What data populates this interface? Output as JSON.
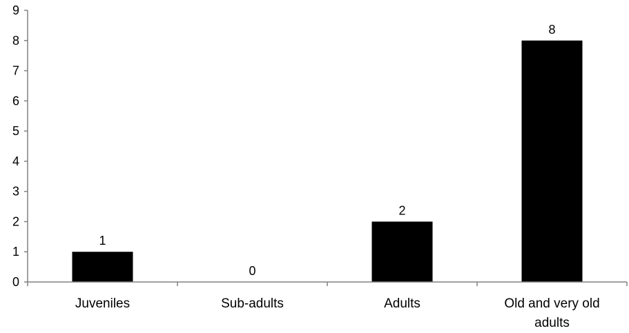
{
  "chart_data": {
    "type": "bar",
    "title": "",
    "xlabel": "",
    "ylabel": "",
    "categories": [
      [
        "Juveniles"
      ],
      [
        "Sub-adults"
      ],
      [
        "Adults"
      ],
      [
        "Old and very old",
        "adults"
      ]
    ],
    "values": [
      1,
      0,
      2,
      8
    ],
    "data_labels": [
      "1",
      "0",
      "2",
      "8"
    ],
    "ylim": [
      0,
      9
    ],
    "yticks": [
      "0",
      "1",
      "2",
      "3",
      "4",
      "5",
      "6",
      "7",
      "8",
      "9"
    ],
    "grid": false,
    "legend": "none",
    "colors": {
      "bar": "#000000",
      "axis": "#808080",
      "text": "#000000"
    }
  }
}
